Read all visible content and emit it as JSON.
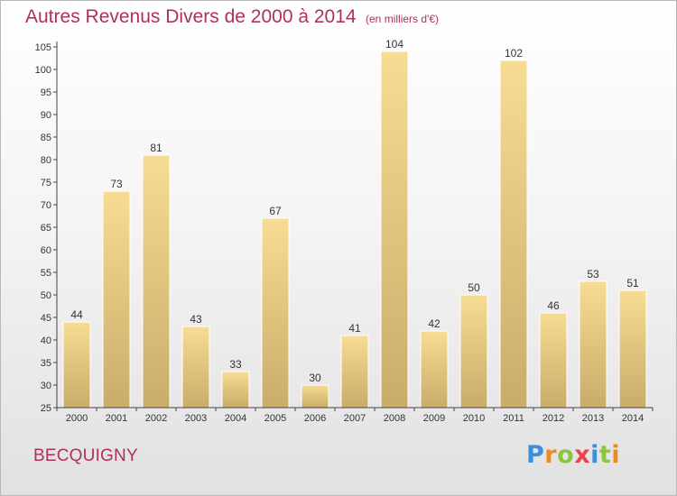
{
  "title": "Autres Revenus Divers de 2000 à 2014",
  "unit": "(en milliers d'€)",
  "town": "BECQUIGNY",
  "logo": {
    "text": "Proxiti",
    "letters": [
      {
        "ch": "P",
        "color": "#3d8fd9"
      },
      {
        "ch": "r",
        "color": "#f08a1c"
      },
      {
        "ch": "o",
        "color": "#8cc63f"
      },
      {
        "ch": "x",
        "color": "#e8434f"
      },
      {
        "ch": "i",
        "color": "#3d8fd9"
      },
      {
        "ch": "t",
        "color": "#8cc63f"
      },
      {
        "ch": "i",
        "color": "#f08a1c"
      }
    ]
  },
  "colors": {
    "title": "#b0305a",
    "bar_light": "#f7dc93",
    "bar_dark": "#c9ac69",
    "axis": "#444444"
  },
  "chart_data": {
    "type": "bar",
    "categories": [
      "2000",
      "2001",
      "2002",
      "2003",
      "2004",
      "2005",
      "2006",
      "2007",
      "2008",
      "2009",
      "2010",
      "2011",
      "2012",
      "2013",
      "2014"
    ],
    "values": [
      44,
      73,
      81,
      43,
      33,
      67,
      30,
      41,
      104,
      42,
      50,
      102,
      46,
      53,
      51
    ],
    "ylim": [
      25,
      105
    ],
    "yticks": [
      25,
      30,
      35,
      40,
      45,
      50,
      55,
      60,
      65,
      70,
      75,
      80,
      85,
      90,
      95,
      100,
      105
    ],
    "grid": false,
    "legend": "none"
  }
}
